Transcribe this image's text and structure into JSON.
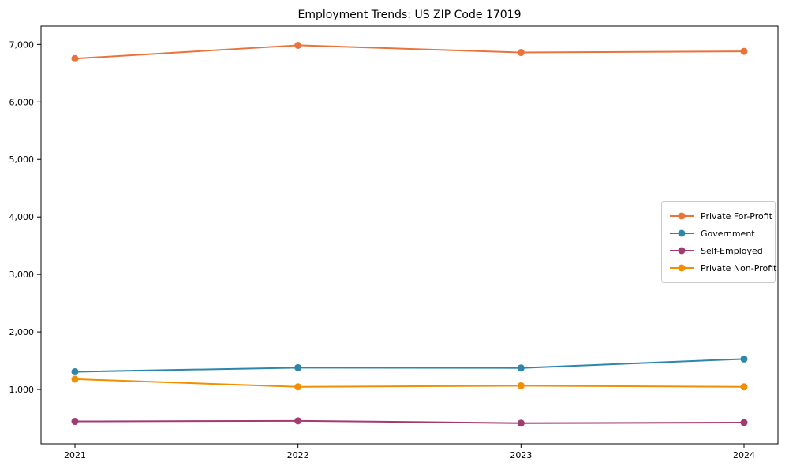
{
  "chart_data": {
    "type": "line",
    "title": "Employment Trends: US ZIP Code 17019",
    "xlabel": "",
    "ylabel": "",
    "x": [
      2021,
      2022,
      2023,
      2024
    ],
    "series": [
      {
        "name": "Private For-Profit",
        "color": "#E8743B",
        "values": [
          6755,
          6985,
          6860,
          6880
        ]
      },
      {
        "name": "Government",
        "color": "#2E86AB",
        "values": [
          1310,
          1380,
          1375,
          1530
        ]
      },
      {
        "name": "Self-Employed",
        "color": "#A23B72",
        "values": [
          445,
          455,
          415,
          425
        ]
      },
      {
        "name": "Private Non-Profit",
        "color": "#F18F01",
        "values": [
          1180,
          1045,
          1065,
          1045
        ]
      }
    ],
    "yticks": [
      1000,
      2000,
      3000,
      4000,
      5000,
      6000,
      7000
    ],
    "ytick_labels": [
      "1,000",
      "2,000",
      "3,000",
      "4,000",
      "5,000",
      "6,000",
      "7,000"
    ],
    "xtick_labels": [
      "2021",
      "2022",
      "2023",
      "2024"
    ],
    "ylim": [
      55,
      7320
    ],
    "grid": false,
    "legend_position": "center right",
    "marker": "circle",
    "spine_color": "#000000"
  }
}
